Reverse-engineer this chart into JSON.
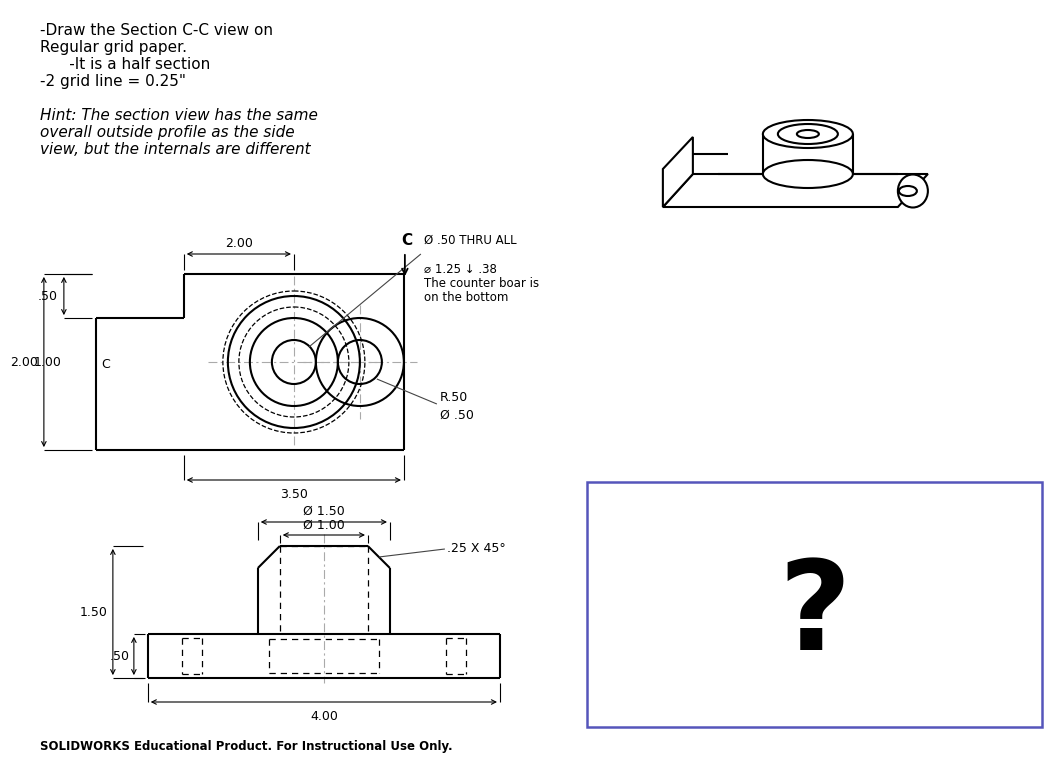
{
  "title_text_line1": "-Draw the Section C-C view on",
  "title_text_line2": "Regular grid paper.",
  "title_text_line3": "      -It is a half section",
  "title_text_line4": "-2 grid line = 0.25\"",
  "hint_text_line1": "Hint: The section view has the same",
  "hint_text_line2": "overall outside profile as the side",
  "hint_text_line3": "view, but the internals are different",
  "callout_text1": "Ø .50 THRU ALL",
  "callout_text2": "⌀ 1.25 ↓ .38",
  "callout_text3": "The counter boar is",
  "callout_text4": "on the bottom",
  "dim_200": "2.00",
  "dim_350": "3.50",
  "dim_050_top": ".50",
  "dim_200_left": "2.00",
  "dim_100_left": "1.00",
  "dim_R50": "R.50",
  "dim_D50": "Ø .50",
  "dim_150": "Ø 1.50",
  "dim_100": "Ø 1.00",
  "dim_25x45": ".25 X 45°",
  "dim_150_vert": "1.50",
  "dim_050_vert": ".50",
  "dim_400": "4.00",
  "solidworks_text": "SOLIDWORKS Educational Product. For Instructional Use Only.",
  "bg_color": "#ffffff",
  "line_color": "#000000",
  "blue_box_color": "#5555bb",
  "center_line_color": "#aaaaaa"
}
